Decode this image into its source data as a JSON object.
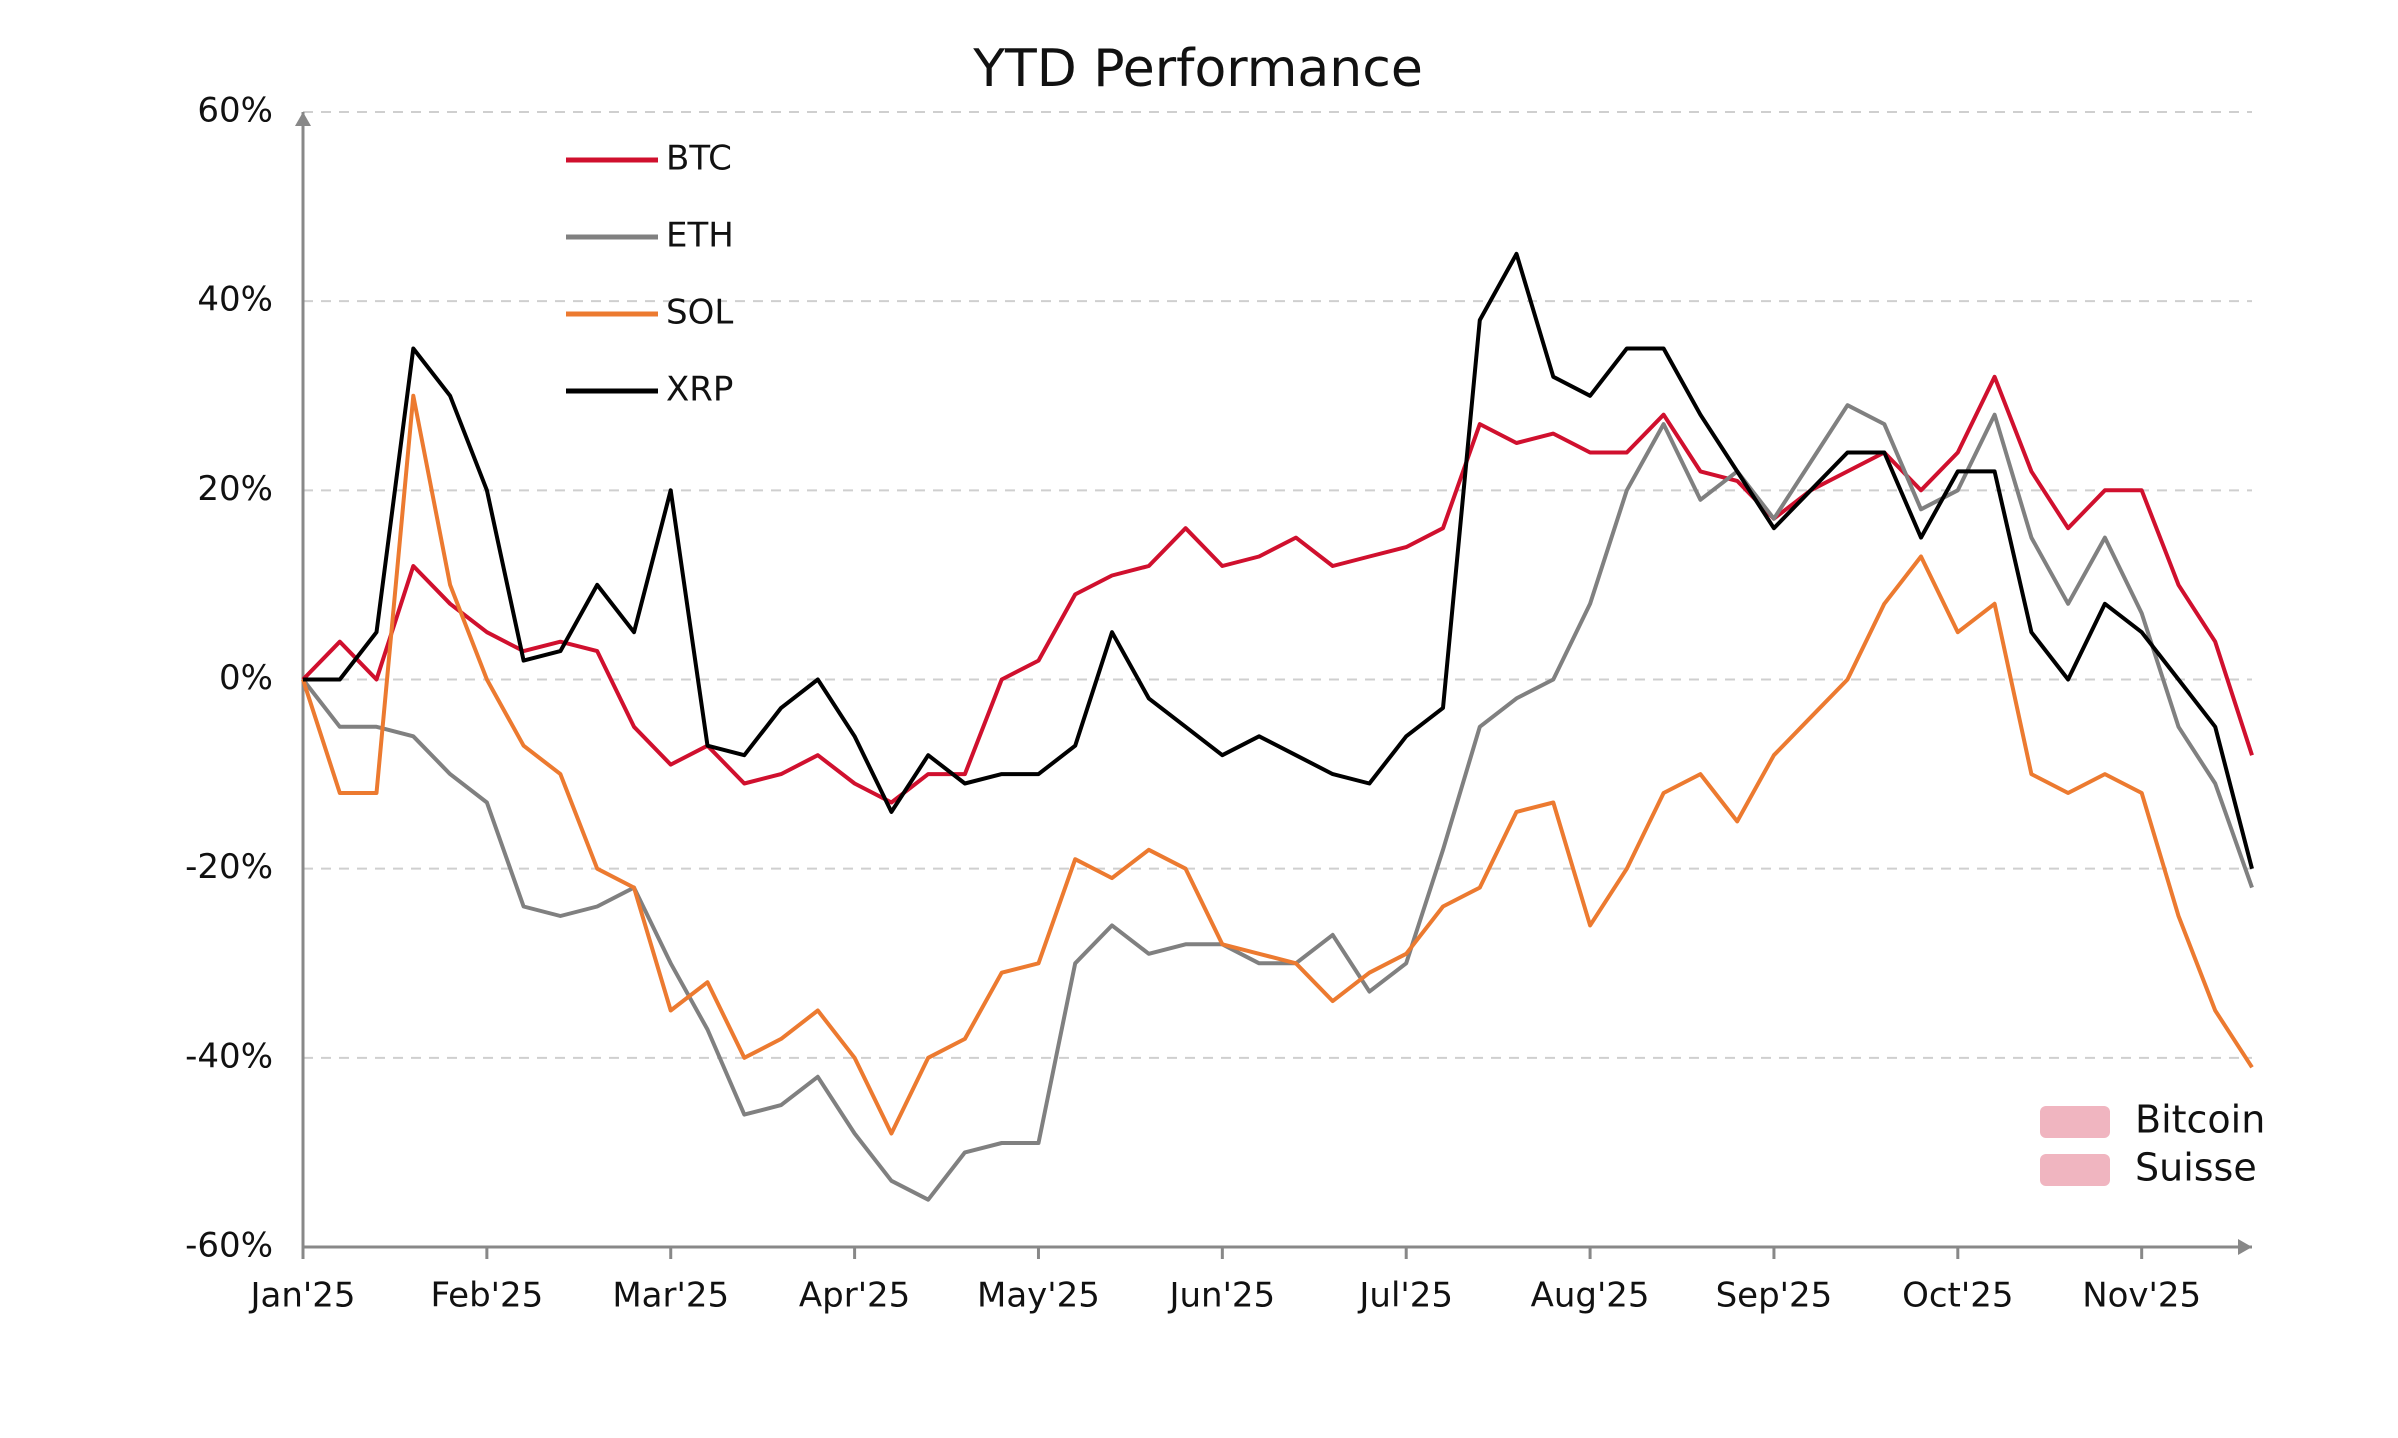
{
  "chart_data": {
    "type": "line",
    "title": "YTD Performance",
    "categories": [
      "Jan'25",
      null,
      null,
      null,
      null,
      "Feb'25",
      null,
      null,
      null,
      null,
      "Mar'25",
      null,
      null,
      null,
      null,
      "Apr'25",
      null,
      null,
      null,
      null,
      "May'25",
      null,
      null,
      null,
      null,
      "Jun'25",
      null,
      null,
      null,
      null,
      "Jul'25",
      null,
      null,
      null,
      null,
      "Aug'25",
      null,
      null,
      null,
      null,
      "Sep'25",
      null,
      null,
      null,
      null,
      "Oct'25",
      null,
      null,
      null,
      null,
      "Nov'25",
      null,
      null,
      null
    ],
    "series": [
      {
        "name": "BTC",
        "color": "#d0102e",
        "values": [
          0,
          4,
          0,
          12,
          8,
          5,
          3,
          4,
          3,
          -5,
          -9,
          -7,
          -11,
          -10,
          -8,
          -11,
          -13,
          -10,
          -10,
          0,
          2,
          9,
          11,
          12,
          16,
          12,
          13,
          15,
          12,
          13,
          14,
          16,
          27,
          25,
          26,
          24,
          24,
          28,
          22,
          21,
          17,
          20,
          22,
          24,
          20,
          24,
          32,
          22,
          16,
          20,
          20,
          10,
          4,
          -8
        ]
      },
      {
        "name": "ETH",
        "color": "#808080",
        "values": [
          0,
          -5,
          -5,
          -6,
          -10,
          -13,
          -24,
          -25,
          -24,
          -22,
          -30,
          -37,
          -46,
          -45,
          -42,
          -48,
          -53,
          -55,
          -50,
          -49,
          -49,
          -30,
          -26,
          -29,
          -28,
          -28,
          -30,
          -30,
          -27,
          -33,
          -30,
          -18,
          -5,
          -2,
          0,
          8,
          20,
          27,
          19,
          22,
          17,
          23,
          29,
          27,
          18,
          20,
          28,
          15,
          8,
          15,
          7,
          -5,
          -11,
          -22
        ]
      },
      {
        "name": "SOL",
        "color": "#ec7a30",
        "values": [
          0,
          -12,
          -12,
          30,
          10,
          0,
          -7,
          -10,
          -20,
          -22,
          -35,
          -32,
          -40,
          -38,
          -35,
          -40,
          -48,
          -40,
          -38,
          -31,
          -30,
          -19,
          -21,
          -18,
          -20,
          -28,
          -29,
          -30,
          -34,
          -31,
          -29,
          -24,
          -22,
          -14,
          -13,
          -26,
          -20,
          -12,
          -10,
          -15,
          -8,
          -4,
          0,
          8,
          13,
          5,
          8,
          -10,
          -12,
          -10,
          -12,
          -25,
          -35,
          -41
        ]
      },
      {
        "name": "XRP",
        "color": "#000000",
        "values": [
          0,
          0,
          5,
          35,
          30,
          20,
          2,
          3,
          10,
          5,
          20,
          -7,
          -8,
          -3,
          0,
          -6,
          -14,
          -8,
          -11,
          -10,
          -10,
          -7,
          5,
          -2,
          -5,
          -8,
          -6,
          -8,
          -10,
          -11,
          -6,
          -3,
          38,
          45,
          32,
          30,
          35,
          35,
          28,
          22,
          16,
          20,
          24,
          24,
          15,
          22,
          22,
          5,
          0,
          8,
          5,
          0,
          -5,
          -20
        ]
      }
    ],
    "ylim": [
      -60,
      60
    ],
    "yticks": [
      {
        "value": -60,
        "label": "-60%"
      },
      {
        "value": -40,
        "label": "-40%"
      },
      {
        "value": -20,
        "label": "-20%"
      },
      {
        "value": 0,
        "label": "0%"
      },
      {
        "value": 20,
        "label": "20%"
      },
      {
        "value": 40,
        "label": "40%"
      },
      {
        "value": 60,
        "label": "60%"
      }
    ],
    "grid": true,
    "legend": "upper left",
    "watermark": [
      "Bitcoin",
      "Suisse"
    ]
  }
}
